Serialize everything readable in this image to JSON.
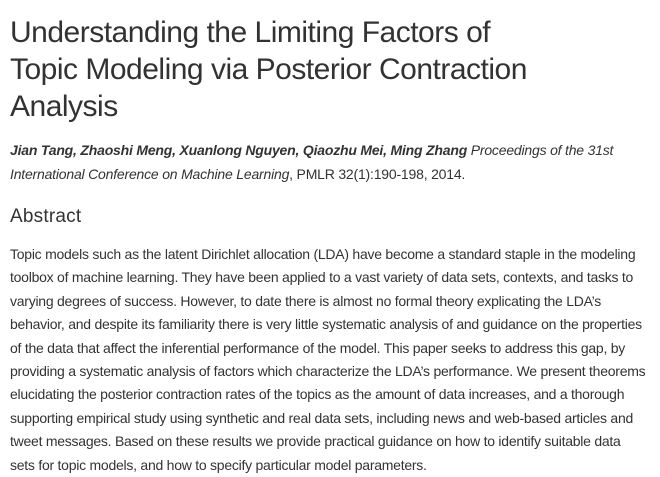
{
  "page": {
    "title_lines": [
      "Understanding the Limiting Factors of",
      "Topic Modeling via Posterior Contraction",
      "Analysis"
    ],
    "byline": {
      "authors": "Jian Tang, Zhaoshi Meng, Xuanlong Nguyen, Qiaozhu Mei, Ming Zhang",
      "venue": "Proceedings of the 31st International Conference on Machine Learning",
      "citation": ", PMLR 32(1):190-198, 2014."
    },
    "abstract": {
      "heading": "Abstract",
      "text": "Topic models such as the latent Dirichlet allocation (LDA) have become a standard staple in the modeling toolbox of machine learning. They have been applied to a vast variety of data sets, contexts, and tasks to varying degrees of success. However, to date there is almost no formal theory explicating the LDA’s behavior, and despite its familiarity there is very little systematic analysis of and guidance on the properties of the data that affect the inferential performance of the model. This paper seeks to address this gap, by providing a systematic analysis of factors which characterize the LDA’s performance. We present theorems elucidating the posterior contraction rates of the topics as the amount of data increases, and a thorough supporting empirical study using synthetic and real data sets, including news and web-based articles and tweet messages. Based on these results we provide practical guidance on how to identify suitable data sets for topic models, and how to specify particular model parameters."
    },
    "colors": {
      "text": "#333333",
      "background": "#ffffff"
    }
  }
}
